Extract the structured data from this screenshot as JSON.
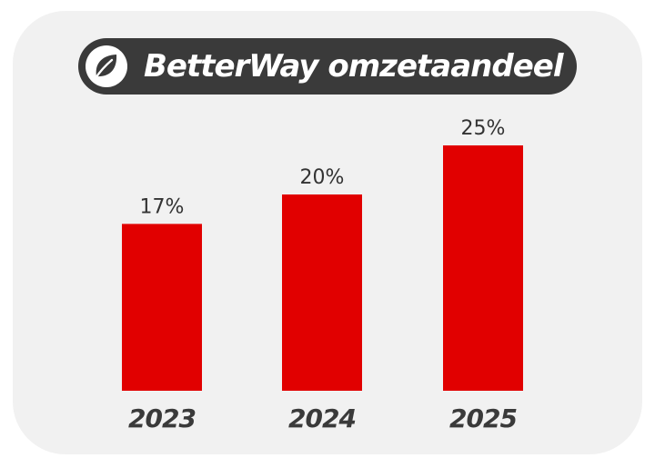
{
  "title": "BetterWay omzetaandeel",
  "title_icon": "leaf-icon",
  "colors": {
    "bar": "#e10000",
    "title_background": "#3a3a3a",
    "card_background": "#f1f1f1",
    "text": "#333333"
  },
  "chart_data": {
    "type": "bar",
    "categories": [
      "2023",
      "2024",
      "2025"
    ],
    "values": [
      17,
      20,
      25
    ],
    "value_labels": [
      "17%",
      "20%",
      "25%"
    ],
    "title": "BetterWay omzetaandeel",
    "xlabel": "",
    "ylabel": "",
    "ylim": [
      0,
      30
    ],
    "grid": false
  }
}
